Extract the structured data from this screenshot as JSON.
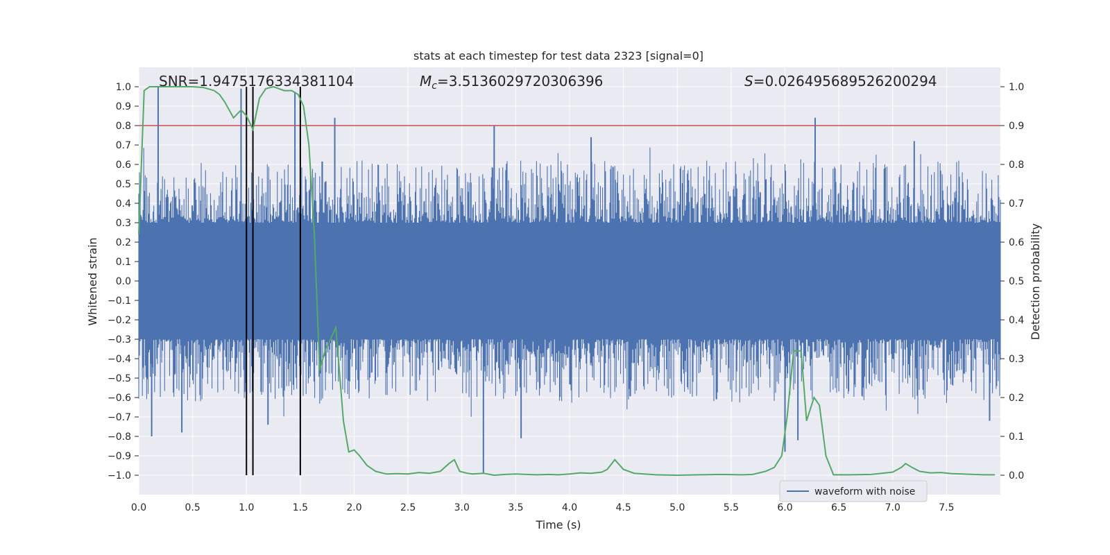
{
  "chart_data": {
    "type": "line",
    "title": "stats at each timestep for test data 2323 [signal=0]",
    "xlabel": "Time (s)",
    "ylabel": "Whitened strain",
    "y2label": "Detection probability",
    "xlim": [
      0.0,
      8.0
    ],
    "ylim": [
      -1.1,
      1.1
    ],
    "y2lim": [
      -0.05,
      1.05
    ],
    "xticks": [
      "0.0",
      "0.5",
      "1.0",
      "1.5",
      "2.0",
      "2.5",
      "3.0",
      "3.5",
      "4.0",
      "4.5",
      "5.0",
      "5.5",
      "6.0",
      "6.5",
      "7.0",
      "7.5"
    ],
    "xtick_values": [
      0.0,
      0.5,
      1.0,
      1.5,
      2.0,
      2.5,
      3.0,
      3.5,
      4.0,
      4.5,
      5.0,
      5.5,
      6.0,
      6.5,
      7.0,
      7.5
    ],
    "yticks": [
      "1.0",
      "0.9",
      "0.8",
      "0.7",
      "0.6",
      "0.5",
      "0.4",
      "0.3",
      "0.2",
      "0.1",
      "0.0",
      "−0.1",
      "−0.2",
      "−0.3",
      "−0.4",
      "−0.5",
      "−0.6",
      "−0.7",
      "−0.8",
      "−0.9",
      "−1.0"
    ],
    "ytick_values": [
      1.0,
      0.9,
      0.8,
      0.7,
      0.6,
      0.5,
      0.4,
      0.3,
      0.2,
      0.1,
      0.0,
      -0.1,
      -0.2,
      -0.3,
      -0.4,
      -0.5,
      -0.6,
      -0.7,
      -0.8,
      -0.9,
      -1.0
    ],
    "y2ticks": [
      "1.0",
      "0.9",
      "0.8",
      "0.7",
      "0.6",
      "0.5",
      "0.4",
      "0.3",
      "0.2",
      "0.1",
      "0.0"
    ],
    "y2tick_values": [
      1.0,
      0.9,
      0.8,
      0.7,
      0.6,
      0.5,
      0.4,
      0.3,
      0.2,
      0.1,
      0.0
    ],
    "annotations": {
      "snr": "SNR=1.9475176334381104",
      "mc_symbol": "M",
      "mc_sub": "c",
      "mc_value": "=3.5136029720306396",
      "s_symbol": "S",
      "s_value": "=0.026495689526200294"
    },
    "legend": {
      "label": "waveform with noise",
      "position": "lower-right"
    },
    "threshold": {
      "value": 0.9,
      "axis": "y2",
      "color": "#c44e52"
    },
    "vertical_markers": [
      1.0,
      1.06,
      1.5
    ],
    "waveform": {
      "name": "waveform with noise",
      "color": "#4c72b0",
      "base_band": 0.27,
      "peaks": [
        {
          "t": 0.18,
          "v": 1.0
        },
        {
          "t": 0.95,
          "v": 0.99
        },
        {
          "t": 1.45,
          "v": 0.97
        },
        {
          "t": 1.82,
          "v": 0.84
        },
        {
          "t": 3.3,
          "v": 0.8
        },
        {
          "t": 4.2,
          "v": 0.74
        },
        {
          "t": 6.28,
          "v": 0.84
        },
        {
          "t": 7.2,
          "v": 0.72
        },
        {
          "t": 0.12,
          "v": -0.8
        },
        {
          "t": 0.4,
          "v": -0.78
        },
        {
          "t": 1.2,
          "v": -0.74
        },
        {
          "t": 3.2,
          "v": -0.99
        },
        {
          "t": 3.55,
          "v": -0.81
        },
        {
          "t": 6.0,
          "v": -0.88
        },
        {
          "t": 6.12,
          "v": -0.82
        },
        {
          "t": 7.9,
          "v": -0.72
        }
      ]
    },
    "probability": {
      "name": "detection probability",
      "color": "#55a868",
      "x": [
        0.0,
        0.05,
        0.1,
        0.2,
        0.3,
        0.4,
        0.5,
        0.6,
        0.7,
        0.75,
        0.8,
        0.88,
        0.95,
        1.0,
        1.06,
        1.12,
        1.18,
        1.25,
        1.35,
        1.42,
        1.48,
        1.53,
        1.58,
        1.63,
        1.68,
        1.73,
        1.78,
        1.83,
        1.9,
        1.95,
        2.0,
        2.05,
        2.12,
        2.2,
        2.3,
        2.4,
        2.5,
        2.6,
        2.7,
        2.8,
        2.88,
        2.93,
        2.98,
        3.05,
        3.1,
        3.2,
        3.3,
        3.4,
        3.5,
        3.6,
        3.7,
        3.8,
        3.9,
        4.0,
        4.1,
        4.2,
        4.3,
        4.35,
        4.42,
        4.5,
        4.6,
        4.8,
        5.0,
        5.2,
        5.4,
        5.6,
        5.7,
        5.82,
        5.9,
        5.97,
        6.02,
        6.08,
        6.15,
        6.2,
        6.27,
        6.32,
        6.38,
        6.45,
        6.6,
        6.8,
        7.0,
        7.08,
        7.12,
        7.18,
        7.25,
        7.35,
        7.45,
        7.55,
        7.65,
        7.75,
        7.85,
        7.95
      ],
      "y": [
        0.62,
        0.99,
        1.0,
        1.0,
        1.0,
        1.0,
        1.0,
        0.998,
        0.99,
        0.98,
        0.96,
        0.92,
        0.94,
        0.925,
        0.89,
        0.97,
        0.995,
        1.0,
        0.99,
        0.99,
        0.98,
        0.95,
        0.85,
        0.62,
        0.27,
        0.32,
        0.35,
        0.38,
        0.14,
        0.06,
        0.065,
        0.05,
        0.025,
        0.01,
        0.003,
        0.004,
        0.003,
        0.007,
        0.005,
        0.01,
        0.03,
        0.04,
        0.01,
        0.005,
        0.003,
        0.005,
        0.0,
        0.002,
        0.003,
        0.002,
        0.001,
        0.002,
        0.001,
        0.003,
        0.006,
        0.005,
        0.008,
        0.015,
        0.04,
        0.015,
        0.005,
        0.001,
        0.0,
        0.001,
        0.002,
        0.001,
        0.002,
        0.01,
        0.02,
        0.05,
        0.15,
        0.32,
        0.32,
        0.14,
        0.2,
        0.18,
        0.05,
        0.001,
        0.001,
        0.002,
        0.008,
        0.02,
        0.03,
        0.02,
        0.01,
        0.006,
        0.007,
        0.004,
        0.003,
        0.002,
        0.001,
        0.001
      ]
    }
  }
}
